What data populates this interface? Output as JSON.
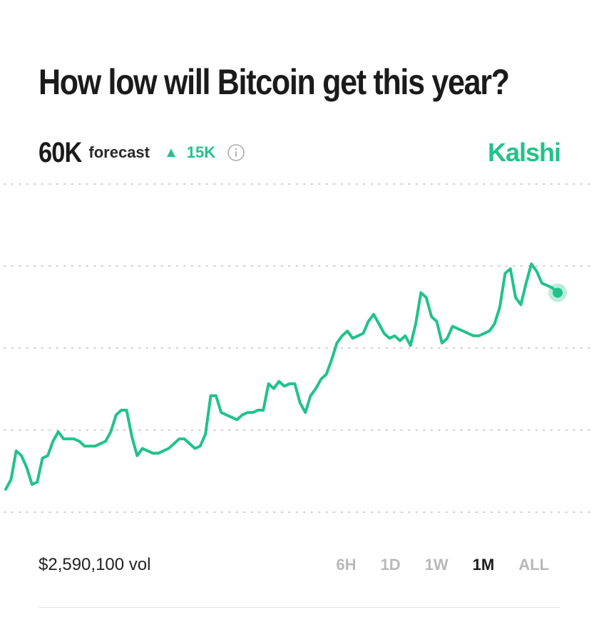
{
  "header": {
    "title": "How low will Bitcoin get this year?"
  },
  "stats": {
    "forecast_value": "60K",
    "forecast_label": "forecast",
    "change_arrow": "▲",
    "change_value": "15K",
    "info_icon": "info-circle-icon"
  },
  "brand": {
    "name": "Kalshi",
    "color": "#22c28a"
  },
  "chart_data": {
    "type": "line",
    "grid": "dotted horizontal",
    "color": "#22c28a",
    "ylim": [
      0,
      100
    ],
    "y": [
      6,
      10,
      22,
      20,
      15,
      8,
      9,
      19,
      20,
      26,
      30,
      27,
      27,
      27,
      26,
      24,
      24,
      24,
      25,
      26,
      30,
      37,
      39,
      39,
      28,
      20,
      23,
      22,
      21,
      21,
      22,
      23,
      25,
      27,
      27,
      25,
      23,
      24,
      29,
      45,
      45,
      38,
      37,
      36,
      35,
      37,
      38,
      38,
      39,
      39,
      50,
      48,
      51,
      49,
      50,
      50,
      42,
      38,
      45,
      48,
      52,
      54,
      60,
      67,
      70,
      72,
      69,
      70,
      71,
      76,
      79,
      75,
      71,
      69,
      70,
      68,
      70,
      66,
      75,
      88,
      86,
      78,
      76,
      67,
      69,
      74,
      73,
      72,
      71,
      70,
      70,
      71,
      72,
      75,
      82,
      96,
      98,
      86,
      83,
      92,
      100,
      97,
      92,
      91,
      90,
      88
    ],
    "current_value": 88
  },
  "footer": {
    "volume": "$2,590,100 vol",
    "ranges": [
      {
        "label": "6H",
        "active": false
      },
      {
        "label": "1D",
        "active": false
      },
      {
        "label": "1W",
        "active": false
      },
      {
        "label": "1M",
        "active": true
      },
      {
        "label": "ALL",
        "active": false
      }
    ]
  }
}
